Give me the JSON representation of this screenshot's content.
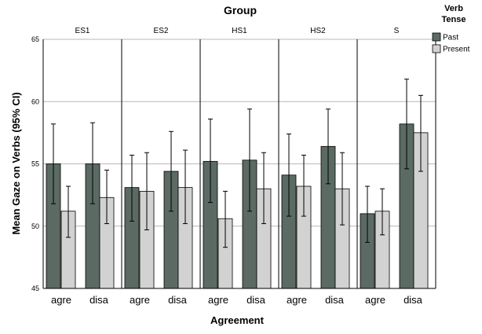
{
  "chart_data": {
    "type": "bar",
    "title": "Group",
    "xlabel": "Agreement",
    "ylabel": "Mean Gaze on Verbs (95% CI)",
    "ylim": [
      45,
      65
    ],
    "yticks": [
      45,
      50,
      55,
      60,
      65
    ],
    "grid": true,
    "legend": {
      "title": "Verb Tense",
      "position": "top-right",
      "entries": [
        {
          "name": "Past",
          "color": "#5b6b64"
        },
        {
          "name": "Present",
          "color": "#d2d2d2"
        }
      ]
    },
    "panels": [
      "ES1",
      "ES2",
      "HS1",
      "HS2",
      "S"
    ],
    "categories": [
      "agre",
      "disa"
    ],
    "series": [
      {
        "name": "Past",
        "color": "#5b6b64",
        "values": {
          "ES1": [
            55.0,
            55.0
          ],
          "ES2": [
            53.1,
            54.4
          ],
          "HS1": [
            55.2,
            55.3
          ],
          "HS2": [
            54.1,
            56.4
          ],
          "S": [
            51.0,
            58.2
          ]
        },
        "ci": {
          "ES1": [
            [
              51.8,
              58.2
            ],
            [
              51.8,
              58.3
            ]
          ],
          "ES2": [
            [
              50.4,
              55.7
            ],
            [
              51.2,
              57.6
            ]
          ],
          "HS1": [
            [
              51.9,
              58.6
            ],
            [
              51.2,
              59.4
            ]
          ],
          "HS2": [
            [
              50.8,
              57.4
            ],
            [
              53.4,
              59.4
            ]
          ],
          "S": [
            [
              48.7,
              53.2
            ],
            [
              54.6,
              61.8
            ]
          ]
        }
      },
      {
        "name": "Present",
        "color": "#d2d2d2",
        "values": {
          "ES1": [
            51.2,
            52.3
          ],
          "ES2": [
            52.8,
            53.1
          ],
          "HS1": [
            50.6,
            53.0
          ],
          "HS2": [
            53.2,
            53.0
          ],
          "S": [
            51.2,
            57.5
          ]
        },
        "ci": {
          "ES1": [
            [
              49.1,
              53.2
            ],
            [
              50.2,
              54.5
            ]
          ],
          "ES2": [
            [
              49.7,
              55.9
            ],
            [
              50.2,
              56.1
            ]
          ],
          "HS1": [
            [
              48.3,
              52.8
            ],
            [
              50.2,
              55.9
            ]
          ],
          "HS2": [
            [
              50.8,
              55.7
            ],
            [
              50.1,
              55.9
            ]
          ],
          "S": [
            [
              49.3,
              53.0
            ],
            [
              54.4,
              60.5
            ]
          ]
        }
      }
    ]
  }
}
